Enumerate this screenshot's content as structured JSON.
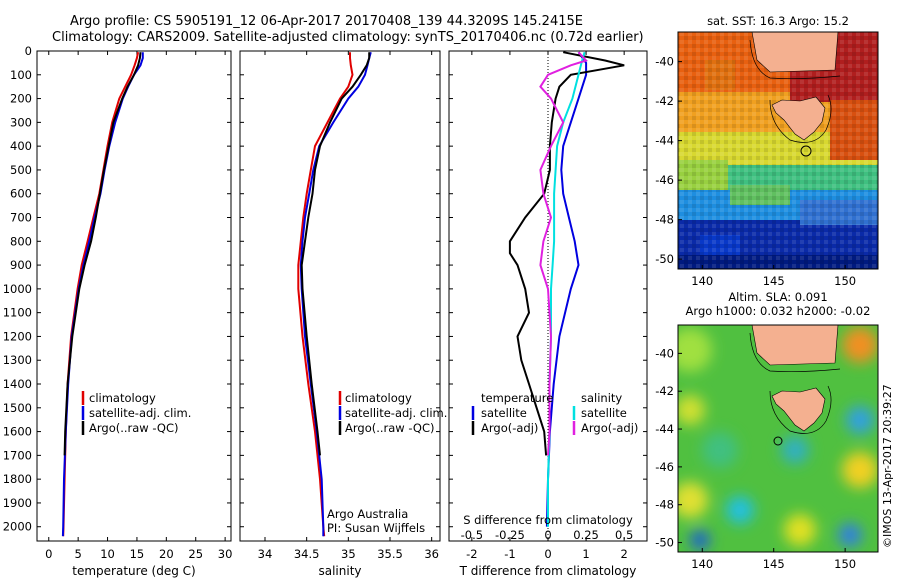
{
  "header": {
    "line1": "Argo profile: CS 5905191_12 06-Apr-2017 20170408_139 44.3209S 145.2415E",
    "line2": "Climatology: CARS2009. Satellite-adjusted climatology: synTS_20170406.nc (0.72d earlier)"
  },
  "colors": {
    "climatology": "#e00000",
    "satellite": "#0000e0",
    "argo": "#000000",
    "argo_salinity": "#e020e0",
    "satellite_salinity": "#00e0e0"
  },
  "chart_data": [
    {
      "type": "line",
      "xlabel": "temperature (deg C)",
      "xlim": [
        -2,
        31
      ],
      "xticks": [
        0,
        5,
        10,
        15,
        20,
        25,
        30
      ],
      "ylim": [
        2060,
        0
      ],
      "yticks": [
        0,
        100,
        200,
        300,
        400,
        500,
        600,
        700,
        800,
        900,
        1000,
        1100,
        1200,
        1300,
        1400,
        1500,
        1600,
        1700,
        1800,
        1900,
        2000
      ],
      "legend": [
        "climatology",
        "satellite-adj. clim.",
        "Argo(..raw -QC)"
      ],
      "series": [
        {
          "name": "climatology",
          "depth": [
            5,
            30,
            60,
            100,
            150,
            200,
            300,
            400,
            500,
            600,
            700,
            800,
            900,
            1000,
            1200,
            1400,
            1600,
            1800,
            2000,
            2040
          ],
          "values": [
            15.2,
            15.0,
            14.6,
            14.0,
            13.0,
            12.0,
            10.8,
            10.0,
            9.3,
            8.6,
            7.6,
            6.6,
            5.6,
            4.9,
            3.8,
            3.2,
            2.9,
            2.7,
            2.5,
            2.45
          ]
        },
        {
          "name": "satellite-adj. clim.",
          "depth": [
            5,
            30,
            60,
            100,
            150,
            200,
            300,
            400,
            500,
            600,
            700,
            800,
            900,
            1000,
            1200,
            1400,
            1600,
            1800,
            2000,
            2040
          ],
          "values": [
            16.0,
            16.0,
            15.6,
            14.5,
            13.5,
            12.6,
            11.3,
            10.3,
            9.5,
            8.8,
            7.8,
            6.9,
            5.9,
            5.1,
            3.9,
            3.3,
            2.9,
            2.6,
            2.45,
            2.4
          ]
        },
        {
          "name": "Argo(..raw -QC)",
          "depth": [
            5,
            30,
            60,
            100,
            150,
            200,
            300,
            400,
            500,
            600,
            700,
            800,
            900,
            1000,
            1200,
            1400,
            1600,
            1700
          ],
          "values": [
            15.6,
            15.5,
            15.2,
            14.5,
            13.4,
            12.5,
            11.0,
            10.2,
            9.4,
            8.7,
            8.0,
            7.2,
            6.1,
            5.2,
            4.0,
            3.2,
            2.8,
            2.7
          ]
        }
      ]
    },
    {
      "type": "line",
      "xlabel": "salinity",
      "xlim": [
        33.7,
        36.1
      ],
      "xticks": [
        34,
        34.5,
        35,
        35.5,
        36
      ],
      "ylim": [
        2060,
        0
      ],
      "legend": [
        "climatology",
        "satellite-adj. clim.",
        "Argo(..raw -QC)"
      ],
      "annotation": [
        "Argo Australia",
        "PI: Susan Wijffels"
      ],
      "series": [
        {
          "name": "climatology",
          "depth": [
            5,
            30,
            60,
            100,
            150,
            200,
            300,
            400,
            500,
            600,
            700,
            800,
            900,
            1000,
            1200,
            1400,
            1600,
            1800,
            2000,
            2040
          ],
          "values": [
            35.02,
            35.02,
            35.03,
            35.05,
            35.0,
            34.9,
            34.75,
            34.6,
            34.55,
            34.5,
            34.46,
            34.43,
            34.4,
            34.4,
            34.45,
            34.52,
            34.6,
            34.66,
            34.7,
            34.71
          ]
        },
        {
          "name": "satellite-adj. clim.",
          "depth": [
            5,
            30,
            60,
            100,
            150,
            200,
            300,
            400,
            500,
            600,
            700,
            800,
            900,
            1000,
            1200,
            1400,
            1600,
            1800,
            2000,
            2040
          ],
          "values": [
            35.27,
            35.25,
            35.23,
            35.2,
            35.12,
            35.0,
            34.82,
            34.65,
            34.58,
            34.53,
            34.48,
            34.45,
            34.43,
            34.44,
            34.48,
            34.55,
            34.62,
            34.68,
            34.7,
            34.7
          ]
        },
        {
          "name": "Argo(..raw -QC)",
          "depth": [
            5,
            30,
            60,
            100,
            150,
            200,
            300,
            400,
            500,
            600,
            700,
            800,
            900,
            1000,
            1200,
            1400,
            1600,
            1700
          ],
          "values": [
            35.25,
            35.25,
            35.22,
            35.15,
            35.05,
            34.92,
            34.78,
            34.66,
            34.6,
            34.57,
            34.52,
            34.48,
            34.44,
            34.45,
            34.5,
            34.56,
            34.63,
            34.66
          ]
        }
      ]
    },
    {
      "type": "line",
      "xlabel": "T difference from climatology",
      "xlabel_top": "S difference from climatology",
      "xlim": [
        -2.6,
        2.6
      ],
      "xticks": [
        -2,
        -1,
        0,
        1,
        2
      ],
      "xticks_top": [
        "-0.5",
        "-0.25",
        "0",
        "0.25",
        "0.5"
      ],
      "ylim": [
        2060,
        0
      ],
      "legend_left_title": "temperature",
      "legend_right_title": "salinity",
      "legend_left": [
        "satellite",
        "Argo(-adj)"
      ],
      "legend_right": [
        "satellite",
        "Argo(-adj)"
      ],
      "series": [
        {
          "name": "temperature satellite",
          "depth": [
            5,
            50,
            100,
            150,
            200,
            300,
            400,
            500,
            600,
            700,
            800,
            900,
            1000,
            1200,
            1400,
            1600,
            1800,
            2000
          ],
          "values": [
            0.8,
            1.0,
            1.0,
            0.9,
            0.8,
            0.6,
            0.4,
            0.35,
            0.4,
            0.55,
            0.7,
            0.8,
            0.6,
            0.3,
            0.15,
            0.05,
            0.0,
            -0.03
          ]
        },
        {
          "name": "temperature Argo(-adj)",
          "depth": [
            5,
            40,
            60,
            100,
            150,
            200,
            300,
            400,
            500,
            600,
            700,
            750,
            800,
            850,
            900,
            1000,
            1100,
            1200,
            1300,
            1400,
            1500,
            1600,
            1700
          ],
          "values": [
            0.4,
            1.5,
            2.0,
            0.6,
            0.3,
            0.2,
            0.1,
            0.05,
            0.05,
            -0.1,
            -0.6,
            -0.8,
            -1.0,
            -1.0,
            -0.8,
            -0.6,
            -0.5,
            -0.8,
            -0.7,
            -0.5,
            -0.3,
            -0.1,
            -0.05
          ]
        },
        {
          "name": "salinity satellite",
          "depth": [
            5,
            50,
            100,
            200,
            300,
            400,
            500,
            600,
            700,
            800,
            900,
            1000,
            1200,
            1400,
            1600,
            1800,
            2000
          ],
          "values": [
            0.24,
            0.22,
            0.2,
            0.16,
            0.1,
            0.06,
            0.05,
            0.04,
            0.04,
            0.04,
            0.03,
            0.02,
            0.02,
            0.01,
            0.01,
            0.0,
            0.0
          ]
        },
        {
          "name": "salinity Argo(-adj)",
          "depth": [
            5,
            40,
            60,
            100,
            150,
            200,
            300,
            400,
            500,
            600,
            700,
            800,
            900,
            1000,
            1200,
            1400,
            1600,
            1700
          ],
          "values": [
            0.2,
            0.25,
            0.15,
            0.0,
            -0.05,
            0.02,
            0.1,
            0.02,
            -0.05,
            -0.03,
            0.02,
            -0.03,
            -0.05,
            0.0,
            0.02,
            0.01,
            0.01,
            0.0
          ]
        }
      ]
    },
    {
      "type": "heatmap",
      "title": "sat. SST: 16.3  Argo: 15.2",
      "xticks": [
        140,
        145,
        150
      ],
      "yticks": [
        -40,
        -42,
        -44,
        -46,
        -48,
        -50
      ],
      "xlim": [
        138.3,
        152.3
      ],
      "ylim": [
        -50.5,
        -38.5
      ]
    },
    {
      "type": "heatmap",
      "title": "Altim. SLA: 0.091",
      "subtitle": "Argo h1000: 0.032 h2000: -0.02",
      "xticks": [
        140,
        145,
        150
      ],
      "yticks": [
        -40,
        -42,
        -44,
        -46,
        -48,
        -50
      ],
      "xlim": [
        138.3,
        152.3
      ],
      "ylim": [
        -50.5,
        -38.5
      ],
      "side_label": "©IMOS 13-Apr-2017 20:39:27"
    }
  ]
}
